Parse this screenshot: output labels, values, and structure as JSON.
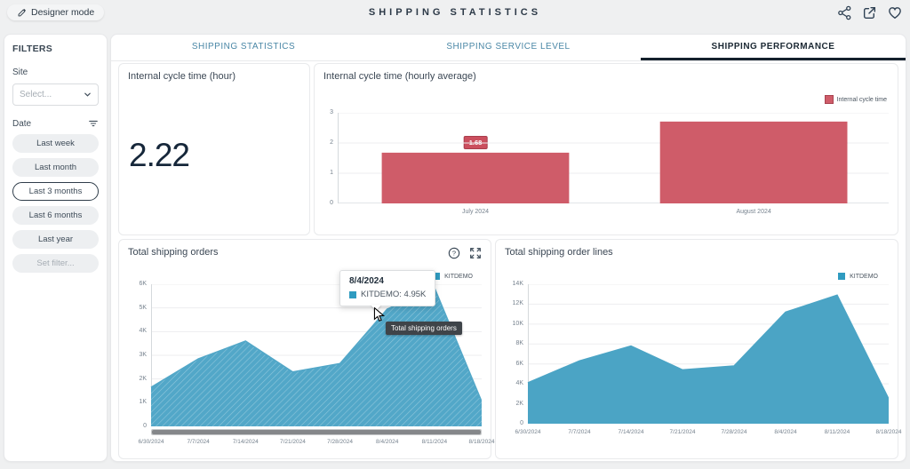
{
  "topbar": {
    "designer_mode": "Designer mode",
    "title": "SHIPPING STATISTICS"
  },
  "filters": {
    "title": "FILTERS",
    "site_label": "Site",
    "site_placeholder": "Select...",
    "date_label": "Date",
    "options": [
      "Last week",
      "Last month",
      "Last 3 months",
      "Last 6 months",
      "Last year",
      "Set filter..."
    ],
    "selected_option": "Last 3 months"
  },
  "tabs": [
    {
      "label": "SHIPPING STATISTICS",
      "active": false
    },
    {
      "label": "SHIPPING SERVICE LEVEL",
      "active": false
    },
    {
      "label": "SHIPPING PERFORMANCE",
      "active": true
    }
  ],
  "kpi": {
    "title": "Internal cycle time (hour)",
    "value": "2.22"
  },
  "cards": {
    "cycle_avg_title": "Internal cycle time (hourly average)",
    "orders_title": "Total shipping orders",
    "order_lines_title": "Total shipping order lines"
  },
  "legends": {
    "cycle": "Internal cycle time",
    "orders": "KITDEMO",
    "order_lines": "KITDEMO"
  },
  "tooltip": {
    "date": "8/4/2024",
    "text": "KITDEMO: 4.95K"
  },
  "cursor_tooltip": "Total shipping orders",
  "colors": {
    "bar_red": "#cf5c69",
    "area_blue": "#52a7c8",
    "legend_blue": "#2f9bc0",
    "tab_active": "#1b2833"
  },
  "chart_data": [
    {
      "type": "bar",
      "title": "Internal cycle time (hourly average)",
      "categories": [
        "July 2024",
        "August 2024"
      ],
      "values": [
        1.68,
        2.71
      ],
      "data_labels": [
        "1.68",
        "2.71"
      ],
      "series_name": "Internal cycle time",
      "xlabel": "",
      "ylabel": "",
      "ylim": [
        0,
        3
      ],
      "ytick_labels": [
        "0",
        "1",
        "2",
        "3"
      ],
      "grid": true,
      "legend_position": "top-right",
      "bar_color": "#cf5c69"
    },
    {
      "type": "area",
      "title": "Total shipping orders",
      "x": [
        "6/30/2024",
        "7/7/2024",
        "7/14/2024",
        "7/21/2024",
        "7/28/2024",
        "8/4/2024",
        "8/11/2024",
        "8/18/2024"
      ],
      "series": [
        {
          "name": "KITDEMO",
          "values": [
            1650,
            2850,
            3600,
            2300,
            2650,
            4950,
            5850,
            1050
          ]
        }
      ],
      "xlabel": "",
      "ylabel": "",
      "ylim": [
        0,
        6000
      ],
      "ytick_labels": [
        "0",
        "1K",
        "2K",
        "3K",
        "4K",
        "5K",
        "6K"
      ],
      "grid": true,
      "legend_position": "top-right",
      "fill_color": "#52a7c8",
      "hatch": true,
      "scrollbar": true
    },
    {
      "type": "area",
      "title": "Total shipping order lines",
      "x": [
        "6/30/2024",
        "7/7/2024",
        "7/14/2024",
        "7/21/2024",
        "7/28/2024",
        "8/4/2024",
        "8/11/2024",
        "8/18/2024"
      ],
      "series": [
        {
          "name": "KITDEMO",
          "values": [
            4100,
            6300,
            7800,
            5400,
            5800,
            11200,
            12900,
            2500
          ]
        }
      ],
      "xlabel": "",
      "ylabel": "",
      "ylim": [
        0,
        14000
      ],
      "ytick_labels": [
        "0",
        "2K",
        "4K",
        "6K",
        "8K",
        "10K",
        "12K",
        "14K"
      ],
      "grid": true,
      "legend_position": "top-right",
      "fill_color": "#4ba4c5",
      "hatch": false,
      "scrollbar": false
    }
  ]
}
